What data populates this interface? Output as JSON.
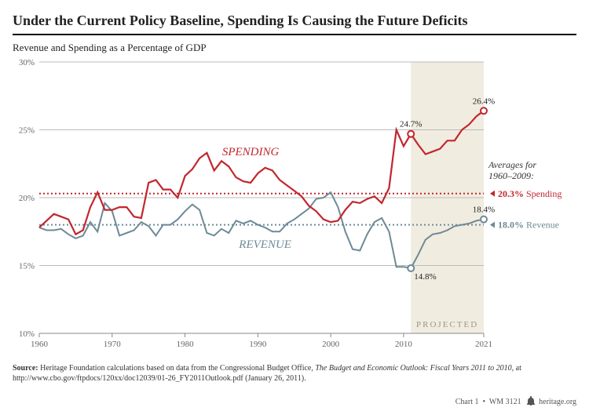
{
  "title": "Under the Current Policy Baseline, Spending Is Causing the Future Deficits",
  "subtitle": "Revenue and Spending as a Percentage of GDP",
  "chart": {
    "type": "line",
    "background_color": "#ffffff",
    "x": {
      "min": 1960,
      "max": 2021,
      "ticks": [
        1960,
        1970,
        1980,
        1990,
        2000,
        2010,
        2021
      ],
      "fontsize": 11,
      "color": "#666666"
    },
    "y": {
      "min": 10,
      "max": 30,
      "ticks": [
        10,
        15,
        20,
        25,
        30
      ],
      "suffix": "%",
      "fontsize": 11,
      "color": "#666666"
    },
    "gridline_color": "#bbbbbb",
    "axis_color": "#888888",
    "projected": {
      "from": 2011,
      "to": 2021,
      "fill": "#ece6d6",
      "label": "PROJECTED",
      "label_color": "#9a9686"
    },
    "series": {
      "spending": {
        "label": "SPENDING",
        "color": "#c1272d",
        "width": 2.2,
        "font_italic": true,
        "fontsize": 15,
        "points": [
          [
            1960,
            17.8
          ],
          [
            1961,
            18.3
          ],
          [
            1962,
            18.8
          ],
          [
            1963,
            18.6
          ],
          [
            1964,
            18.4
          ],
          [
            1965,
            17.3
          ],
          [
            1966,
            17.6
          ],
          [
            1967,
            19.3
          ],
          [
            1968,
            20.4
          ],
          [
            1969,
            19.1
          ],
          [
            1970,
            19.1
          ],
          [
            1971,
            19.3
          ],
          [
            1972,
            19.3
          ],
          [
            1973,
            18.6
          ],
          [
            1974,
            18.5
          ],
          [
            1975,
            21.1
          ],
          [
            1976,
            21.3
          ],
          [
            1977,
            20.6
          ],
          [
            1978,
            20.6
          ],
          [
            1979,
            20.0
          ],
          [
            1980,
            21.6
          ],
          [
            1981,
            22.1
          ],
          [
            1982,
            22.9
          ],
          [
            1983,
            23.3
          ],
          [
            1984,
            22.0
          ],
          [
            1985,
            22.7
          ],
          [
            1986,
            22.3
          ],
          [
            1987,
            21.5
          ],
          [
            1988,
            21.2
          ],
          [
            1989,
            21.1
          ],
          [
            1990,
            21.8
          ],
          [
            1991,
            22.2
          ],
          [
            1992,
            22.0
          ],
          [
            1993,
            21.3
          ],
          [
            1994,
            20.9
          ],
          [
            1995,
            20.5
          ],
          [
            1996,
            20.1
          ],
          [
            1997,
            19.4
          ],
          [
            1998,
            19.0
          ],
          [
            1999,
            18.4
          ],
          [
            2000,
            18.2
          ],
          [
            2001,
            18.3
          ],
          [
            2002,
            19.1
          ],
          [
            2003,
            19.7
          ],
          [
            2004,
            19.6
          ],
          [
            2005,
            19.9
          ],
          [
            2006,
            20.1
          ],
          [
            2007,
            19.6
          ],
          [
            2008,
            20.7
          ],
          [
            2009,
            25.0
          ],
          [
            2010,
            23.8
          ],
          [
            2011,
            24.7
          ],
          [
            2012,
            23.9
          ],
          [
            2013,
            23.2
          ],
          [
            2014,
            23.4
          ],
          [
            2015,
            23.6
          ],
          [
            2016,
            24.2
          ],
          [
            2017,
            24.2
          ],
          [
            2018,
            25.0
          ],
          [
            2019,
            25.4
          ],
          [
            2020,
            26.0
          ],
          [
            2021,
            26.4
          ]
        ],
        "end_marker": {
          "year": 2021,
          "value": 26.4,
          "label": "26.4%"
        },
        "mid_marker": {
          "year": 2011,
          "value": 24.7,
          "label": "24.7%"
        }
      },
      "revenue": {
        "label": "REVENUE",
        "color": "#6d8a96",
        "width": 2,
        "font_italic": true,
        "fontsize": 15,
        "points": [
          [
            1960,
            17.8
          ],
          [
            1961,
            17.6
          ],
          [
            1962,
            17.6
          ],
          [
            1963,
            17.7
          ],
          [
            1964,
            17.3
          ],
          [
            1965,
            17.0
          ],
          [
            1966,
            17.2
          ],
          [
            1967,
            18.2
          ],
          [
            1968,
            17.5
          ],
          [
            1969,
            19.6
          ],
          [
            1970,
            19.0
          ],
          [
            1971,
            17.2
          ],
          [
            1972,
            17.4
          ],
          [
            1973,
            17.6
          ],
          [
            1974,
            18.2
          ],
          [
            1975,
            17.9
          ],
          [
            1976,
            17.2
          ],
          [
            1977,
            18.0
          ],
          [
            1978,
            18.0
          ],
          [
            1979,
            18.4
          ],
          [
            1980,
            19.0
          ],
          [
            1981,
            19.5
          ],
          [
            1982,
            19.1
          ],
          [
            1983,
            17.4
          ],
          [
            1984,
            17.2
          ],
          [
            1985,
            17.7
          ],
          [
            1986,
            17.4
          ],
          [
            1987,
            18.3
          ],
          [
            1988,
            18.1
          ],
          [
            1989,
            18.3
          ],
          [
            1990,
            18.0
          ],
          [
            1991,
            17.8
          ],
          [
            1992,
            17.5
          ],
          [
            1993,
            17.5
          ],
          [
            1994,
            18.1
          ],
          [
            1995,
            18.4
          ],
          [
            1996,
            18.8
          ],
          [
            1997,
            19.2
          ],
          [
            1998,
            19.9
          ],
          [
            1999,
            20.0
          ],
          [
            2000,
            20.4
          ],
          [
            2001,
            19.3
          ],
          [
            2002,
            17.5
          ],
          [
            2003,
            16.2
          ],
          [
            2004,
            16.1
          ],
          [
            2005,
            17.3
          ],
          [
            2006,
            18.2
          ],
          [
            2007,
            18.5
          ],
          [
            2008,
            17.5
          ],
          [
            2009,
            14.9
          ],
          [
            2010,
            14.9
          ],
          [
            2011,
            14.8
          ],
          [
            2012,
            15.8
          ],
          [
            2013,
            16.9
          ],
          [
            2014,
            17.3
          ],
          [
            2015,
            17.4
          ],
          [
            2016,
            17.6
          ],
          [
            2017,
            17.9
          ],
          [
            2018,
            18.0
          ],
          [
            2019,
            18.1
          ],
          [
            2020,
            18.3
          ],
          [
            2021,
            18.4
          ]
        ],
        "end_marker": {
          "year": 2021,
          "value": 18.4,
          "label": "18.4%"
        },
        "mid_marker": {
          "year": 2011,
          "value": 14.8,
          "label": "14.8%"
        }
      }
    },
    "averages": {
      "heading": "Averages for\n1960–2009:",
      "spending": {
        "value": 20.3,
        "text": "20.3%",
        "label": "Spending",
        "color": "#c1272d"
      },
      "revenue": {
        "value": 18.0,
        "text": "18.0%",
        "label": "Revenue",
        "color": "#6d8a96"
      }
    },
    "marker_style": {
      "radius": 4,
      "fill": "#ffffff",
      "stroke_width": 2
    }
  },
  "source": {
    "prefix": "Source:",
    "text_a": "Heritage Foundation calculations based on data from the Congressional Budget Office, ",
    "text_italic": "The Budget and Economic Outlook: Fiscal Years 2011 to 2010",
    "text_b": ", at http://www.cbo.gov/ftpdocs/120xx/doc12039/01-26_FY2011Outlook.pdf (January 26, 2011)."
  },
  "footer": {
    "chart_no": "Chart 1",
    "code": "WM 3121",
    "site": "heritage.org"
  }
}
